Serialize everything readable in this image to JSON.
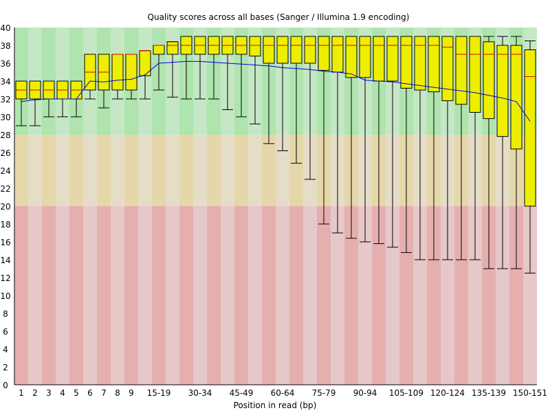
{
  "chart_data": {
    "type": "box",
    "title": "Quality scores across all bases (Sanger / Illumina 1.9 encoding)",
    "xlabel": "Position in read (bp)",
    "ylabel": "",
    "ylim": [
      0,
      40
    ],
    "yticks": [
      0,
      2,
      4,
      6,
      8,
      10,
      12,
      14,
      16,
      18,
      20,
      22,
      24,
      26,
      28,
      30,
      32,
      34,
      36,
      38,
      40
    ],
    "zones": [
      {
        "name": "good",
        "from": 28,
        "to": 40,
        "color_dark": "#afe4af",
        "color_light": "#c5e7c5"
      },
      {
        "name": "reasonable",
        "from": 20,
        "to": 28,
        "color_dark": "#e6d7aa",
        "color_light": "#e6ddc8"
      },
      {
        "name": "poor",
        "from": 0,
        "to": 20,
        "color_dark": "#e6afaf",
        "color_light": "#e6c8c8"
      }
    ],
    "colors": {
      "box": "#eeee00",
      "median": "#dd0000",
      "mean": "#0000dd"
    },
    "categories": [
      "1",
      "2",
      "3",
      "4",
      "5",
      "6",
      "7",
      "8",
      "9",
      "10-14",
      "15-19",
      "20-24",
      "25-29",
      "30-34",
      "35-39",
      "40-44",
      "45-49",
      "50-54",
      "55-59",
      "60-64",
      "65-69",
      "70-74",
      "75-79",
      "80-84",
      "85-89",
      "90-94",
      "95-99",
      "100-104",
      "105-109",
      "110-114",
      "115-119",
      "120-124",
      "125-129",
      "130-134",
      "135-139",
      "140-144",
      "145-149",
      "150-151"
    ],
    "tick_labels": [
      "1",
      "2",
      "3",
      "4",
      "5",
      "6",
      "7",
      "8",
      "9",
      "15-19",
      "30-34",
      "45-49",
      "60-64",
      "75-79",
      "90-94",
      "105-109",
      "120-124",
      "135-139",
      "150-151"
    ],
    "lower_whisker": [
      29,
      29,
      30,
      30,
      30,
      32,
      31,
      32,
      32,
      32,
      33,
      32.2,
      32,
      32,
      32,
      30.8,
      30,
      29.2,
      27,
      26.2,
      24.8,
      23,
      18,
      17,
      16.4,
      16,
      15.8,
      15.4,
      14.8,
      14,
      14,
      14,
      14,
      14,
      13,
      13,
      13,
      12.5
    ],
    "q1": [
      32,
      32,
      32,
      32,
      32,
      33,
      33,
      33,
      33,
      34.6,
      37,
      37,
      37,
      37,
      37,
      37,
      37,
      36.8,
      36,
      36,
      36,
      36,
      35.2,
      35,
      34.4,
      34.4,
      34,
      34,
      33.2,
      33,
      32.8,
      31.8,
      31.4,
      30.5,
      29.8,
      27.8,
      26.4,
      20
    ],
    "median": [
      33,
      33,
      33,
      33,
      33,
      35,
      35,
      37,
      37,
      37.4,
      38,
      38,
      38,
      38,
      38,
      38,
      38,
      38,
      38,
      38,
      38,
      38,
      38,
      38,
      38,
      38,
      38,
      38,
      38,
      38,
      38,
      37.8,
      37,
      37,
      37,
      37,
      37,
      34.5
    ],
    "q3": [
      34,
      34,
      34,
      34,
      34,
      37,
      37,
      37,
      37,
      37.4,
      38,
      38.4,
      39,
      39,
      39,
      39,
      39,
      39,
      39,
      39,
      39,
      39,
      39,
      39,
      39,
      39,
      39,
      39,
      39,
      39,
      39,
      39,
      39,
      39,
      38.4,
      38,
      38,
      37.5
    ],
    "upper_whisker": [
      34,
      34,
      34,
      34,
      34,
      37,
      37,
      37,
      37,
      37.4,
      38,
      38.4,
      39,
      39,
      39,
      39,
      39,
      39,
      39,
      39,
      39,
      39,
      39,
      39,
      39,
      39,
      39,
      39,
      39,
      39,
      39,
      39,
      39,
      39,
      39,
      39,
      39,
      38.5
    ],
    "mean": [
      31.7,
      31.9,
      32.0,
      32.0,
      32.0,
      34.0,
      33.9,
      34.1,
      34.2,
      34.7,
      36.0,
      36.1,
      36.2,
      36.2,
      36.1,
      36.0,
      35.9,
      35.8,
      35.7,
      35.5,
      35.4,
      35.3,
      35.1,
      35.0,
      34.8,
      34.1,
      34.0,
      33.9,
      33.7,
      33.5,
      33.3,
      33.1,
      32.9,
      32.7,
      32.4,
      32.1,
      31.7,
      29.5
    ]
  }
}
